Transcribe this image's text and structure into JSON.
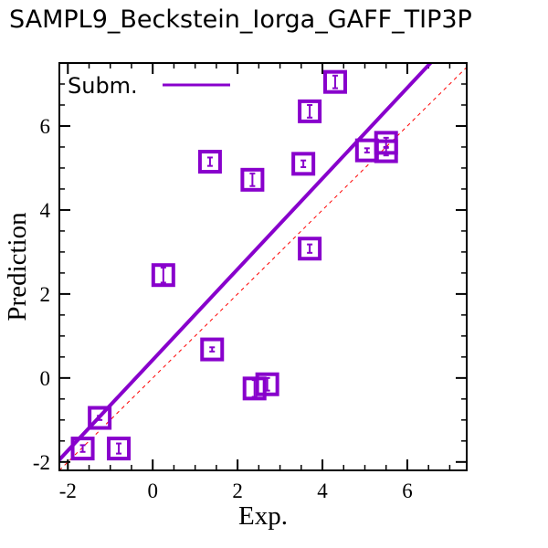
{
  "chart_data": {
    "type": "scatter",
    "title": "SAMPL9_Beckstein_Iorga_GAFF_TIP3P",
    "xlabel": "Exp.",
    "ylabel": "Prediction",
    "xlim": [
      -2.2,
      7.4
    ],
    "ylim": [
      -2.2,
      7.5
    ],
    "xticks": [
      -2,
      0,
      2,
      4,
      6
    ],
    "yticks": [
      -2,
      0,
      2,
      4,
      6
    ],
    "legend": {
      "label": "Subm.",
      "position": "top-left"
    },
    "colors": {
      "series": "#8800cc",
      "identity": "#ff0000",
      "axis": "#000000"
    },
    "series": [
      {
        "name": "Subm.",
        "points": [
          {
            "x": 4.3,
            "y": 7.05,
            "err": 0.15
          },
          {
            "x": 3.7,
            "y": 6.35,
            "err": 0.15
          },
          {
            "x": 5.5,
            "y": 5.6,
            "err": 0.12
          },
          {
            "x": 5.5,
            "y": 5.4,
            "err": 0.1
          },
          {
            "x": 5.05,
            "y": 5.42,
            "err": 0.05
          },
          {
            "x": 1.35,
            "y": 5.15,
            "err": 0.1
          },
          {
            "x": 3.55,
            "y": 5.1,
            "err": 0.08
          },
          {
            "x": 2.35,
            "y": 4.72,
            "err": 0.15
          },
          {
            "x": 3.7,
            "y": 3.08,
            "err": 0.1
          },
          {
            "x": 0.25,
            "y": 2.45,
            "err": 0.18
          },
          {
            "x": 1.4,
            "y": 0.68,
            "err": 0.05
          },
          {
            "x": 2.7,
            "y": -0.15,
            "err": 0.15
          },
          {
            "x": 2.4,
            "y": -0.25,
            "err": 0.2
          },
          {
            "x": -1.25,
            "y": -0.95,
            "err": 0.05
          },
          {
            "x": -1.65,
            "y": -1.68,
            "err": 0.08
          },
          {
            "x": -0.8,
            "y": -1.68,
            "err": 0.12
          }
        ],
        "fit_line": {
          "slope": 1.08,
          "intercept": 0.43
        }
      }
    ],
    "identity_line": true
  }
}
